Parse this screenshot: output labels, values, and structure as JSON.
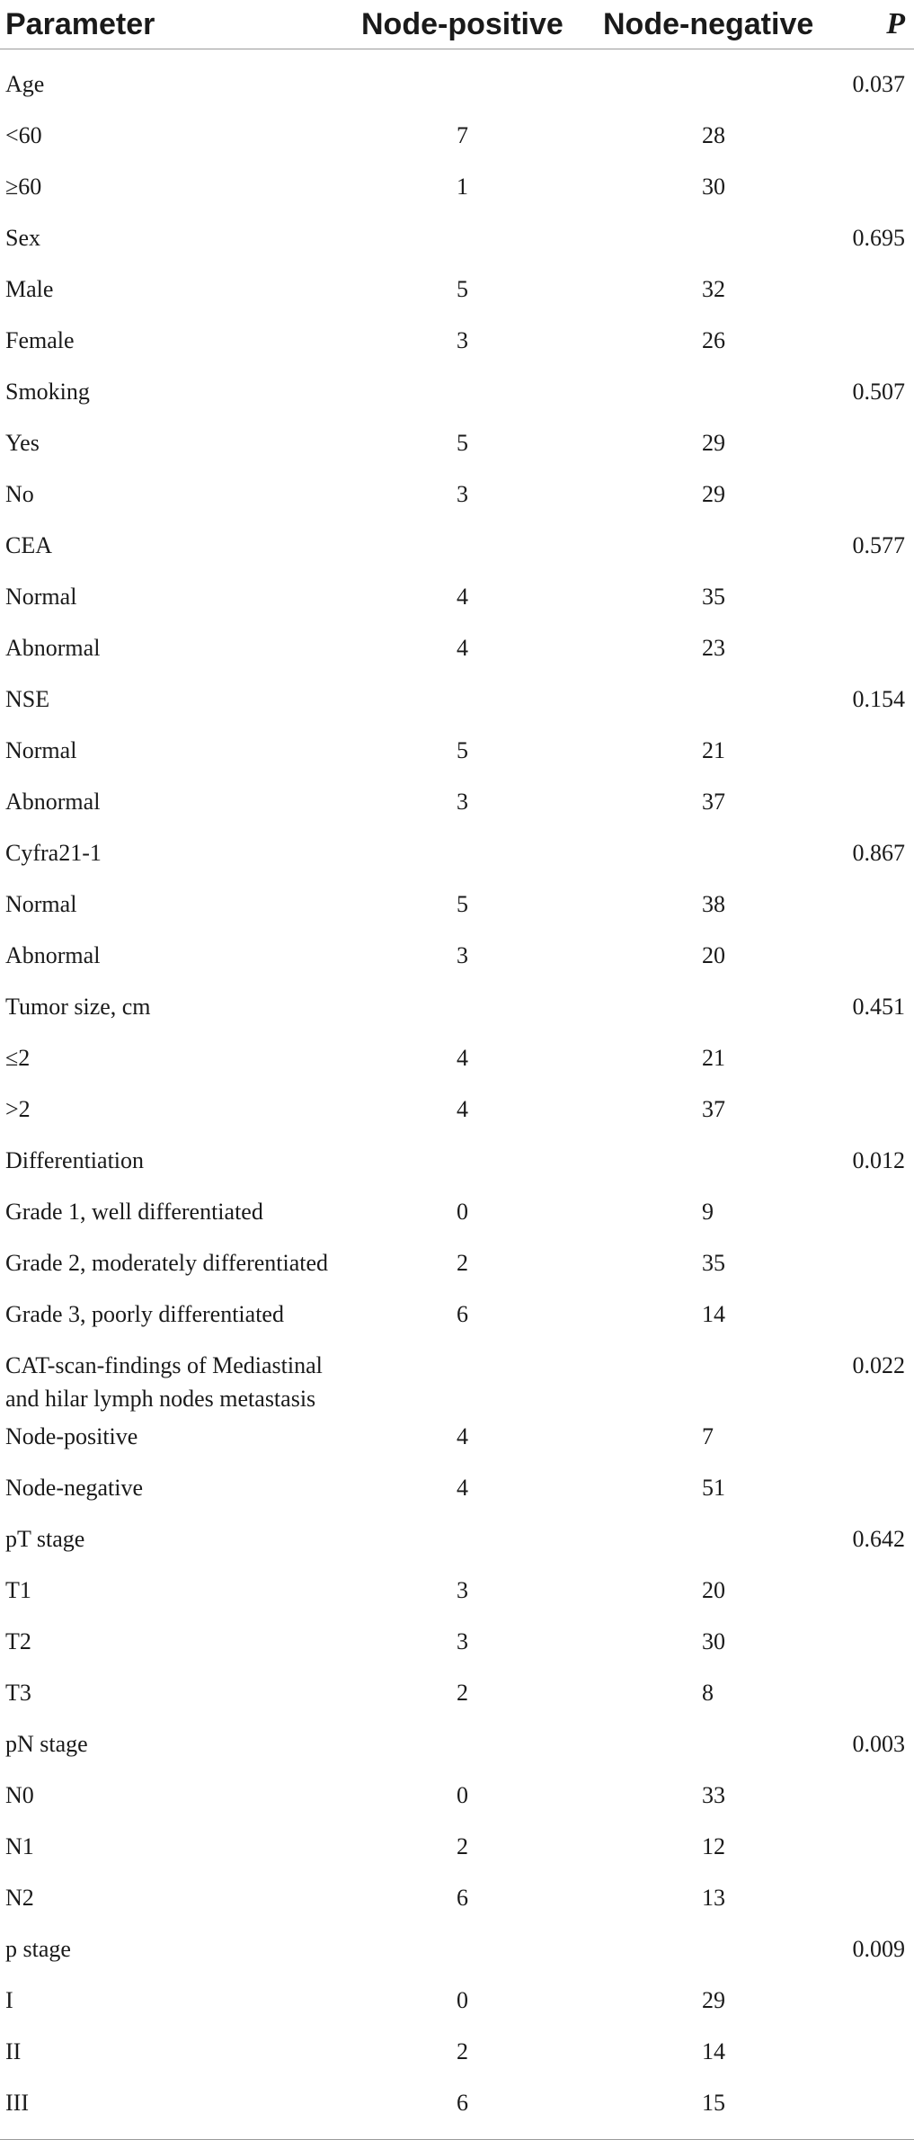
{
  "table": {
    "headers": {
      "parameter": "Parameter",
      "node_positive": "Node-positive",
      "node_negative": "Node-negative",
      "p": "P"
    },
    "rows": [
      {
        "parameter": "Age",
        "pos": "",
        "neg": "",
        "p": "0.037"
      },
      {
        "parameter": "<60",
        "pos": "7",
        "neg": "28",
        "p": ""
      },
      {
        "parameter": "≥60",
        "pos": "1",
        "neg": "30",
        "p": ""
      },
      {
        "parameter": "Sex",
        "pos": "",
        "neg": "",
        "p": "0.695"
      },
      {
        "parameter": "Male",
        "pos": "5",
        "neg": "32",
        "p": ""
      },
      {
        "parameter": "Female",
        "pos": "3",
        "neg": "26",
        "p": ""
      },
      {
        "parameter": "Smoking",
        "pos": "",
        "neg": "",
        "p": "0.507"
      },
      {
        "parameter": "Yes",
        "pos": "5",
        "neg": "29",
        "p": ""
      },
      {
        "parameter": "No",
        "pos": "3",
        "neg": "29",
        "p": ""
      },
      {
        "parameter": "CEA",
        "pos": "",
        "neg": "",
        "p": "0.577"
      },
      {
        "parameter": "Normal",
        "pos": "4",
        "neg": "35",
        "p": ""
      },
      {
        "parameter": "Abnormal",
        "pos": "4",
        "neg": "23",
        "p": ""
      },
      {
        "parameter": "NSE",
        "pos": "",
        "neg": "",
        "p": "0.154"
      },
      {
        "parameter": "Normal",
        "pos": "5",
        "neg": "21",
        "p": ""
      },
      {
        "parameter": "Abnormal",
        "pos": "3",
        "neg": "37",
        "p": ""
      },
      {
        "parameter": "Cyfra21-1",
        "pos": "",
        "neg": "",
        "p": "0.867"
      },
      {
        "parameter": "Normal",
        "pos": "5",
        "neg": "38",
        "p": ""
      },
      {
        "parameter": "Abnormal",
        "pos": "3",
        "neg": "20",
        "p": ""
      },
      {
        "parameter": "Tumor size, cm",
        "pos": "",
        "neg": "",
        "p": "0.451"
      },
      {
        "parameter": "≤2",
        "pos": "4",
        "neg": "21",
        "p": ""
      },
      {
        "parameter": ">2",
        "pos": "4",
        "neg": "37",
        "p": ""
      },
      {
        "parameter": "Differentiation",
        "pos": "",
        "neg": "",
        "p": "0.012"
      },
      {
        "parameter": "Grade 1, well differentiated",
        "pos": "0",
        "neg": "9",
        "p": ""
      },
      {
        "parameter": "Grade 2, moderately differentiated",
        "pos": "2",
        "neg": "35",
        "p": ""
      },
      {
        "parameter": "Grade 3, poorly differentiated",
        "pos": "6",
        "neg": "14",
        "p": ""
      },
      {
        "parameter": "CAT-scan-findings of Mediastinal and hilar lymph nodes metastasis",
        "pos": "",
        "neg": "",
        "p": "0.022"
      },
      {
        "parameter": "Node-positive",
        "pos": "4",
        "neg": "7",
        "p": ""
      },
      {
        "parameter": "Node-negative",
        "pos": "4",
        "neg": "51",
        "p": ""
      },
      {
        "parameter": "pT stage",
        "pos": "",
        "neg": "",
        "p": "0.642"
      },
      {
        "parameter": "T1",
        "pos": "3",
        "neg": "20",
        "p": ""
      },
      {
        "parameter": "T2",
        "pos": "3",
        "neg": "30",
        "p": ""
      },
      {
        "parameter": "T3",
        "pos": "2",
        "neg": "8",
        "p": ""
      },
      {
        "parameter": "pN stage",
        "pos": "",
        "neg": "",
        "p": "0.003"
      },
      {
        "parameter": "N0",
        "pos": "0",
        "neg": "33",
        "p": ""
      },
      {
        "parameter": "N1",
        "pos": "2",
        "neg": "12",
        "p": ""
      },
      {
        "parameter": "N2",
        "pos": "6",
        "neg": "13",
        "p": ""
      },
      {
        "parameter": "p stage",
        "pos": "",
        "neg": "",
        "p": "0.009"
      },
      {
        "parameter": "I",
        "pos": "0",
        "neg": "29",
        "p": ""
      },
      {
        "parameter": "II",
        "pos": "2",
        "neg": "14",
        "p": ""
      },
      {
        "parameter": "III",
        "pos": "6",
        "neg": "15",
        "p": ""
      }
    ]
  }
}
